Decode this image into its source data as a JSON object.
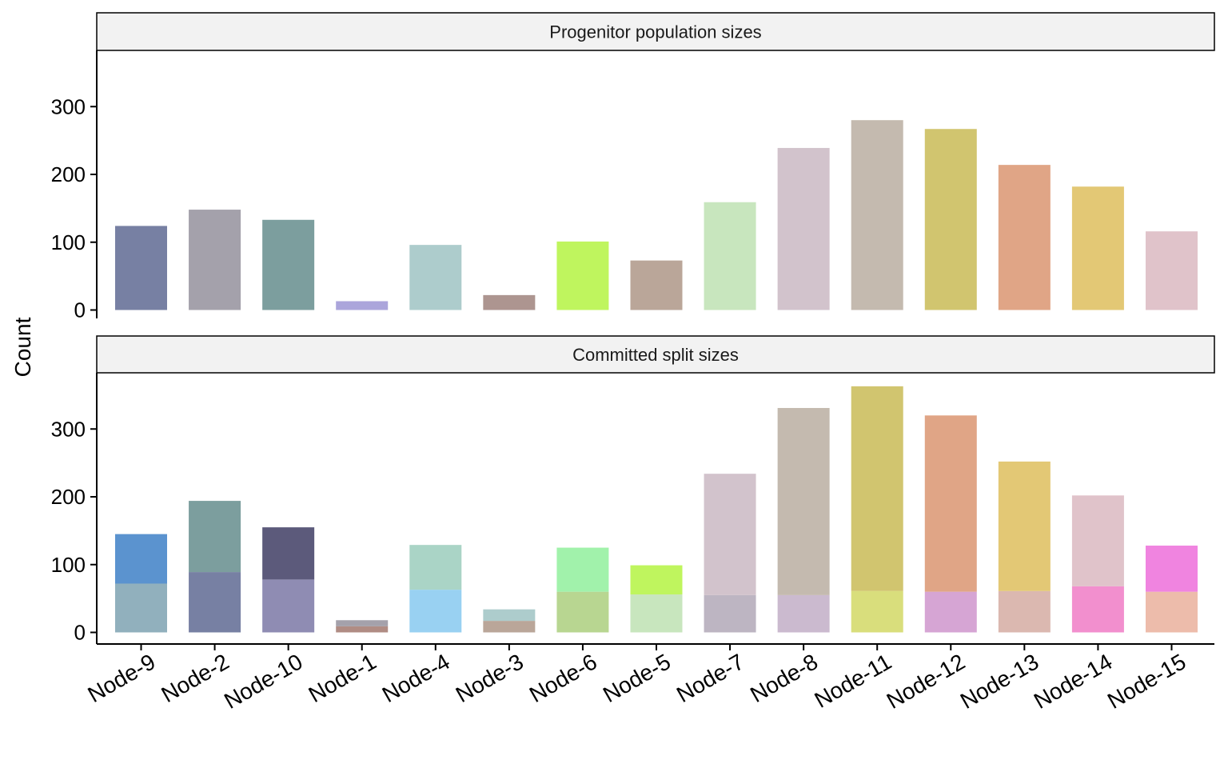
{
  "chart_data": {
    "type": "bar",
    "ylabel": "Count",
    "xlabel": "",
    "categories": [
      "Node-9",
      "Node-2",
      "Node-10",
      "Node-1",
      "Node-4",
      "Node-3",
      "Node-6",
      "Node-5",
      "Node-7",
      "Node-8",
      "Node-11",
      "Node-12",
      "Node-13",
      "Node-14",
      "Node-15"
    ],
    "grid": false,
    "legend": "none",
    "panels": [
      {
        "title": "Progenitor population sizes",
        "ylim": [
          0,
          380
        ],
        "yticks": [
          0,
          100,
          200,
          300
        ],
        "series": [
          {
            "values": [
              124,
              148,
              133,
              13,
              96,
              22,
              101,
              73,
              159,
              239,
              280,
              267,
              214,
              182,
              116
            ],
            "colors": [
              "#7780a3",
              "#a4a1ab",
              "#7c9e9e",
              "#aba5db",
              "#adcccc",
              "#ad9590",
              "#bff55e",
              "#baa699",
              "#c8e6be",
              "#d2c3cc",
              "#c4baaf",
              "#d1c56f",
              "#e0a586",
              "#e3c875",
              "#e0c3ca"
            ]
          }
        ]
      },
      {
        "title": "Committed split sizes",
        "ylim": [
          0,
          380
        ],
        "yticks": [
          0,
          100,
          200,
          300
        ],
        "stacked": true,
        "series": [
          {
            "values": [
              72,
              89,
              78,
              9,
              63,
              17,
              60,
              56,
              55,
              55,
              61,
              60,
              61,
              68,
              60
            ],
            "colors": [
              "#91b0bd",
              "#7780a3",
              "#8f8cb3",
              "#b08c84",
              "#99d1f2",
              "#baa699",
              "#b8d691",
              "#c8e6be",
              "#bdb5c2",
              "#cbbacf",
              "#d9de7c",
              "#d6a5d4",
              "#dbb8b0",
              "#f28fce",
              "#edbcab"
            ]
          },
          {
            "values": [
              73,
              105,
              77,
              9,
              66,
              17,
              65,
              43,
              179,
              276,
              302,
              260,
              191,
              134,
              68
            ],
            "colors": [
              "#5b93cf",
              "#7c9e9e",
              "#5c5a7b",
              "#a4a1ab",
              "#aad4c6",
              "#adcccc",
              "#a1f2ab",
              "#bff55e",
              "#d2c3cc",
              "#c4baaf",
              "#d1c56f",
              "#e0a586",
              "#e3c875",
              "#e0c3ca",
              "#f084e0"
            ]
          }
        ]
      }
    ]
  }
}
